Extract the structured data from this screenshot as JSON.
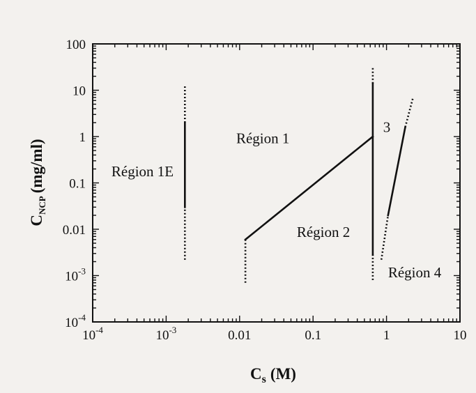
{
  "chart_data": {
    "type": "line",
    "xlabel": "C",
    "xlabel_sub": "s",
    "xlabel_unit": "(M)",
    "ylabel": "C",
    "ylabel_sub": "NCP",
    "ylabel_unit": "(mg/ml)",
    "x_scale": "log",
    "y_scale": "log",
    "xlim": [
      0.0001,
      10
    ],
    "ylim": [
      0.0001,
      100
    ],
    "grid": false,
    "x_ticks": [
      {
        "value": 0.0001,
        "base": "10",
        "exp": "-4"
      },
      {
        "value": 0.001,
        "base": "10",
        "exp": "-3"
      },
      {
        "value": 0.01,
        "label": "0.01"
      },
      {
        "value": 0.1,
        "label": "0.1"
      },
      {
        "value": 1,
        "label": "1"
      },
      {
        "value": 10,
        "label": "10"
      }
    ],
    "y_ticks": [
      {
        "value": 100,
        "label": "100"
      },
      {
        "value": 10,
        "label": "10"
      },
      {
        "value": 1,
        "label": "1"
      },
      {
        "value": 0.1,
        "label": "0.1"
      },
      {
        "value": 0.01,
        "label": "0.01"
      },
      {
        "value": 0.001,
        "base": "10",
        "exp": "-3"
      },
      {
        "value": 0.0001,
        "base": "10",
        "exp": "-4"
      }
    ],
    "series": [
      {
        "style": "dotted",
        "points": [
          [
            0.0018,
            0.0022
          ],
          [
            0.0018,
            0.03
          ]
        ]
      },
      {
        "style": "solid",
        "points": [
          [
            0.0018,
            0.03
          ],
          [
            0.0018,
            2
          ]
        ]
      },
      {
        "style": "dotted",
        "points": [
          [
            0.0018,
            2
          ],
          [
            0.0018,
            13
          ]
        ]
      },
      {
        "style": "dotted",
        "points": [
          [
            0.012,
            0.0007
          ],
          [
            0.012,
            0.006
          ]
        ]
      },
      {
        "style": "solid",
        "points": [
          [
            0.012,
            0.006
          ],
          [
            0.65,
            1.0
          ]
        ]
      },
      {
        "style": "solid",
        "points": [
          [
            0.65,
            0.0028
          ],
          [
            0.65,
            14
          ]
        ]
      },
      {
        "style": "dotted",
        "points": [
          [
            0.65,
            14
          ],
          [
            0.65,
            30
          ]
        ]
      },
      {
        "style": "dotted",
        "points": [
          [
            0.65,
            0.0008
          ],
          [
            0.65,
            0.0028
          ]
        ]
      },
      {
        "style": "solid",
        "points": [
          [
            1.05,
            0.02
          ],
          [
            1.8,
            1.6
          ]
        ]
      },
      {
        "style": "dotted",
        "points": [
          [
            1.8,
            1.6
          ],
          [
            2.3,
            7
          ]
        ]
      },
      {
        "style": "dotted",
        "points": [
          [
            0.85,
            0.0022
          ],
          [
            1.05,
            0.02
          ]
        ]
      }
    ],
    "annotations": [
      {
        "text": "Région 1E",
        "x": 0.00018,
        "y": 0.14
      },
      {
        "text": "Région 1",
        "x": 0.009,
        "y": 0.72
      },
      {
        "text": "Région 2",
        "x": 0.06,
        "y": 0.0068
      },
      {
        "text": "3",
        "x": 0.9,
        "y": 1.25
      },
      {
        "text": "Région 4",
        "x": 1.05,
        "y": 0.00092
      }
    ]
  }
}
